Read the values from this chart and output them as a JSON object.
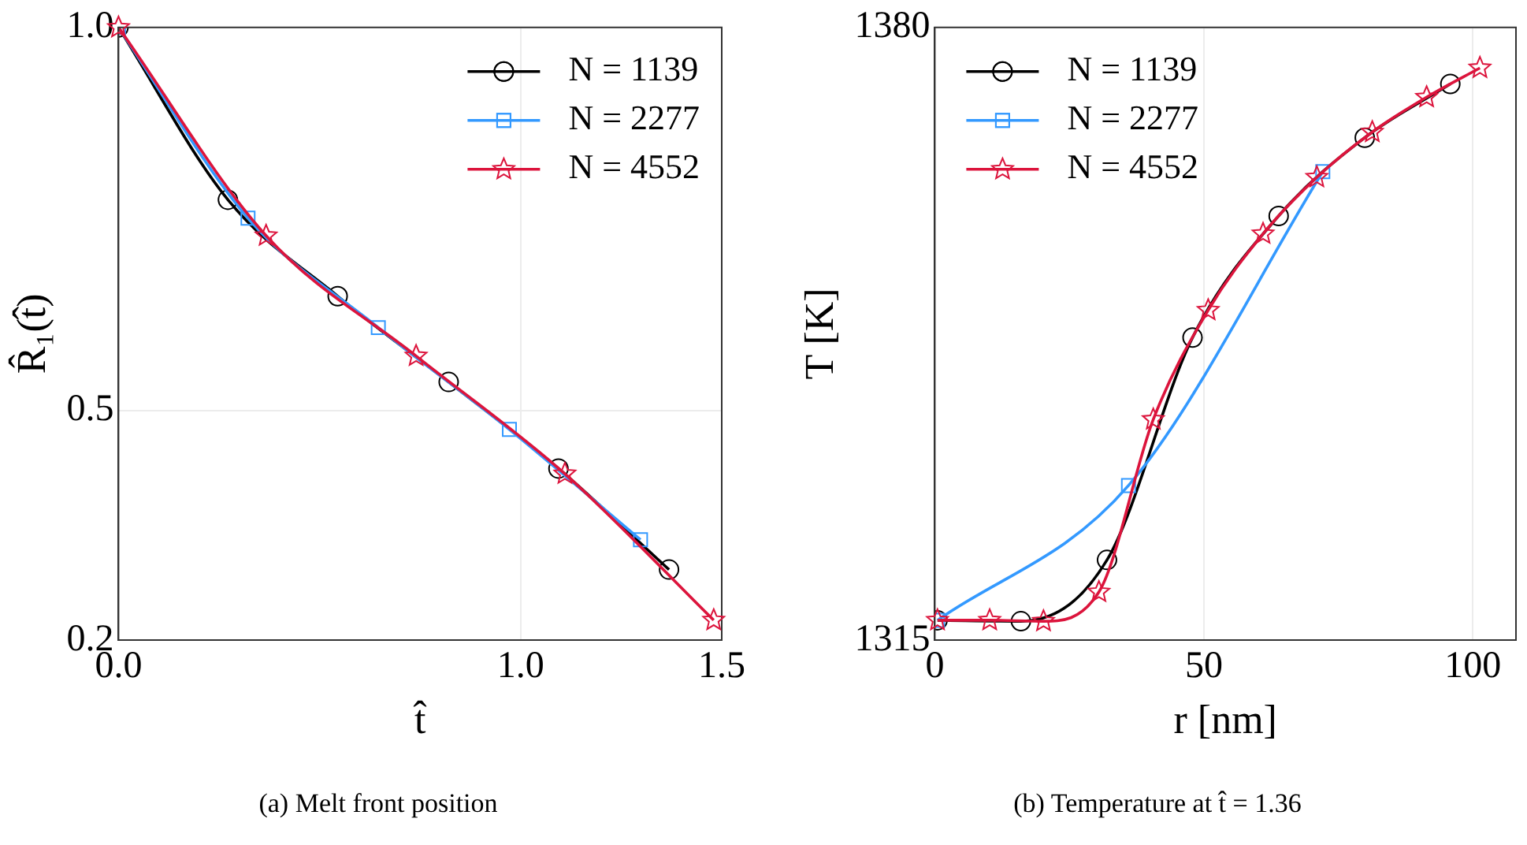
{
  "chart_data": [
    {
      "type": "line",
      "xlabel": "t̂",
      "ylabel": "R̂₁(t̂)",
      "annotations": [
        "(a) Melt front position"
      ],
      "xlim": [
        0,
        1.5
      ],
      "ylim": [
        0.2,
        1.0
      ],
      "xticks": [
        {
          "value": 0,
          "label": "0.0"
        },
        {
          "value": 1,
          "label": "1.0"
        },
        1.5
      ],
      "yticks": [
        0.2,
        0.5,
        {
          "value": 1,
          "label": "1.0"
        }
      ],
      "grid": true,
      "legend": "top right",
      "series": [
        {
          "name": "N = 1139",
          "color": "#000000",
          "marker": "circle",
          "x": [
            0,
            0.272,
            0.545,
            0.821,
            1.094,
            1.369
          ],
          "values": [
            1.0,
            0.775,
            0.649,
            0.537,
            0.424,
            0.292
          ]
        },
        {
          "name": "N = 2277",
          "color": "#3399ff",
          "marker": "square",
          "x": [
            0,
            0.322,
            0.646,
            0.972,
            1.298
          ],
          "values": [
            1.0,
            0.751,
            0.608,
            0.475,
            0.331
          ]
        },
        {
          "name": "N = 4552",
          "color": "#dc143c",
          "marker": "star",
          "x": [
            0,
            0.367,
            0.74,
            1.11,
            1.48
          ],
          "values": [
            1.0,
            0.728,
            0.571,
            0.417,
            0.226
          ]
        }
      ]
    },
    {
      "type": "line",
      "xlabel": "r [nm]",
      "ylabel": "T [K]",
      "annotations": [
        "(b) Temperature at t̂ = 1.36"
      ],
      "xlim": [
        0,
        108
      ],
      "ylim": [
        1315,
        1380
      ],
      "xticks": [
        0,
        50,
        100
      ],
      "yticks": [
        1315,
        1380
      ],
      "grid": true,
      "legend": "top left",
      "series": [
        {
          "name": "N = 1139",
          "color": "#000000",
          "marker": "circle",
          "x": [
            0.5,
            16,
            32,
            47.9,
            63.9,
            79.9,
            95.8
          ],
          "values": [
            1317.1,
            1317.0,
            1323.5,
            1347.1,
            1360.0,
            1368.3,
            1374.0
          ]
        },
        {
          "name": "N = 2277",
          "color": "#3399ff",
          "marker": "square",
          "x": [
            0.5,
            36,
            72.1
          ],
          "values": [
            1317.1,
            1331.4,
            1364.7
          ]
        },
        {
          "name": "N = 4552",
          "color": "#dc143c",
          "marker": "star",
          "x": [
            0.5,
            10.2,
            20.2,
            30.5,
            40.6,
            50.8,
            61,
            71,
            81.3,
            91.4,
            101.3
          ],
          "values": [
            1317.1,
            1317.1,
            1317.0,
            1320.1,
            1338.4,
            1350.0,
            1358.1,
            1364.1,
            1368.9,
            1372.6,
            1375.7
          ]
        }
      ]
    }
  ]
}
